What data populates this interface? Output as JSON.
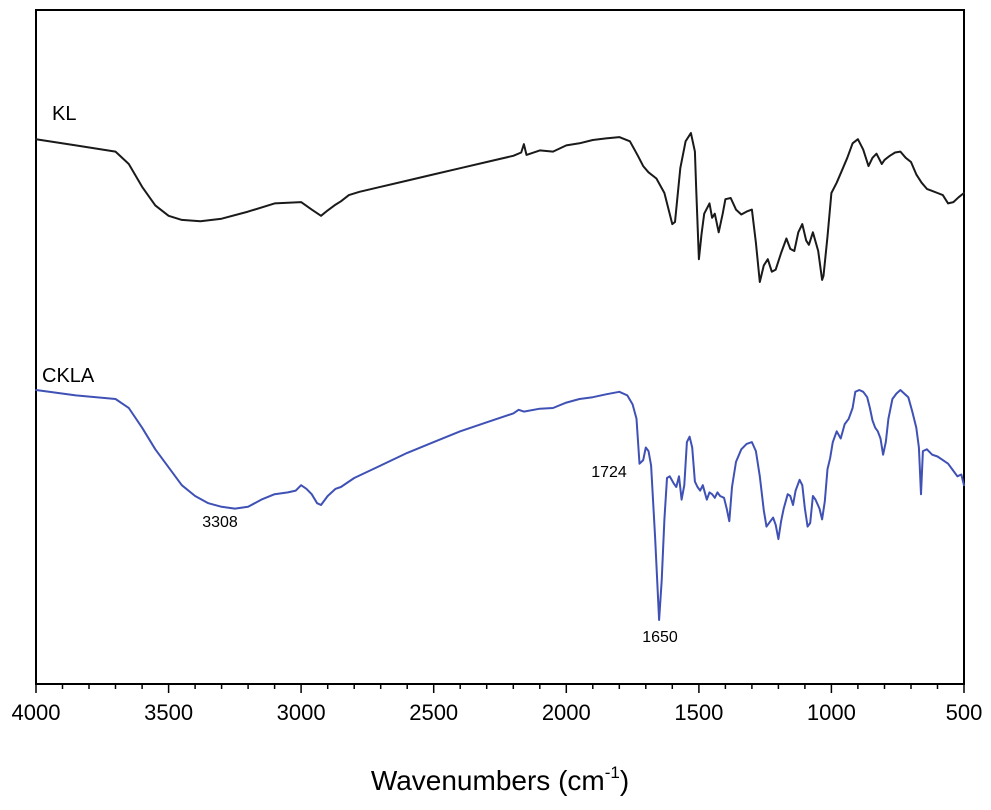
{
  "chart_data": {
    "type": "line",
    "title": "",
    "xlabel": "Wavenumbers (cm",
    "xlabel_sup": "-1",
    "xlabel_close": ")",
    "ylabel": "",
    "xlim": [
      4000,
      500
    ],
    "x_reversed": true,
    "ylim": [
      0,
      100
    ],
    "grid": false,
    "x_ticks": [
      4000,
      3500,
      3000,
      2500,
      2000,
      1500,
      1000,
      500
    ],
    "x_tick_labels": [
      "4000",
      "3500",
      "3000",
      "2500",
      "2000",
      "1500",
      "1000",
      "500"
    ],
    "series": [
      {
        "name": "KL",
        "color": "#1a1a1a",
        "points": [
          [
            4000,
            85.0
          ],
          [
            3850,
            83.5
          ],
          [
            3700,
            82.0
          ],
          [
            3650,
            79.0
          ],
          [
            3600,
            73.5
          ],
          [
            3550,
            69.0
          ],
          [
            3500,
            66.5
          ],
          [
            3450,
            65.5
          ],
          [
            3380,
            65.2
          ],
          [
            3300,
            65.8
          ],
          [
            3200,
            67.5
          ],
          [
            3100,
            69.5
          ],
          [
            3000,
            69.8
          ],
          [
            2960,
            68.0
          ],
          [
            2925,
            66.5
          ],
          [
            2900,
            67.8
          ],
          [
            2870,
            69.2
          ],
          [
            2850,
            70.0
          ],
          [
            2820,
            71.5
          ],
          [
            2780,
            72.3
          ],
          [
            2700,
            73.5
          ],
          [
            2600,
            75.0
          ],
          [
            2500,
            76.5
          ],
          [
            2400,
            78.0
          ],
          [
            2300,
            79.5
          ],
          [
            2200,
            81.0
          ],
          [
            2170,
            81.8
          ],
          [
            2160,
            83.8
          ],
          [
            2150,
            81.2
          ],
          [
            2100,
            82.3
          ],
          [
            2050,
            82.0
          ],
          [
            2000,
            83.5
          ],
          [
            1950,
            84.0
          ],
          [
            1900,
            84.8
          ],
          [
            1850,
            85.2
          ],
          [
            1800,
            85.5
          ],
          [
            1760,
            84.5
          ],
          [
            1730,
            81.0
          ],
          [
            1710,
            78.5
          ],
          [
            1690,
            77.0
          ],
          [
            1660,
            75.5
          ],
          [
            1630,
            72.0
          ],
          [
            1600,
            64.5
          ],
          [
            1590,
            65.0
          ],
          [
            1570,
            78.0
          ],
          [
            1550,
            84.5
          ],
          [
            1530,
            86.5
          ],
          [
            1515,
            82.0
          ],
          [
            1510,
            73.0
          ],
          [
            1500,
            56.0
          ],
          [
            1490,
            62.0
          ],
          [
            1480,
            67.0
          ],
          [
            1460,
            69.5
          ],
          [
            1450,
            66.0
          ],
          [
            1440,
            67.0
          ],
          [
            1425,
            62.5
          ],
          [
            1410,
            67.0
          ],
          [
            1400,
            70.5
          ],
          [
            1380,
            70.8
          ],
          [
            1360,
            68.0
          ],
          [
            1340,
            66.8
          ],
          [
            1320,
            67.5
          ],
          [
            1300,
            68.0
          ],
          [
            1285,
            60.0
          ],
          [
            1270,
            50.5
          ],
          [
            1255,
            54.5
          ],
          [
            1240,
            56.0
          ],
          [
            1225,
            53.0
          ],
          [
            1210,
            53.5
          ],
          [
            1190,
            57.5
          ],
          [
            1170,
            61.0
          ],
          [
            1155,
            58.5
          ],
          [
            1140,
            58.0
          ],
          [
            1125,
            62.5
          ],
          [
            1110,
            64.5
          ],
          [
            1095,
            60.5
          ],
          [
            1085,
            59.5
          ],
          [
            1070,
            62.5
          ],
          [
            1050,
            58.0
          ],
          [
            1035,
            51.0
          ],
          [
            1030,
            52.0
          ],
          [
            1015,
            61.5
          ],
          [
            1000,
            72.0
          ],
          [
            980,
            74.5
          ],
          [
            960,
            77.5
          ],
          [
            940,
            80.5
          ],
          [
            920,
            84.0
          ],
          [
            900,
            85.0
          ],
          [
            880,
            82.5
          ],
          [
            860,
            78.5
          ],
          [
            845,
            80.5
          ],
          [
            830,
            81.5
          ],
          [
            810,
            79.0
          ],
          [
            800,
            80.0
          ],
          [
            780,
            81.0
          ],
          [
            760,
            81.8
          ],
          [
            740,
            82.0
          ],
          [
            720,
            80.5
          ],
          [
            700,
            79.5
          ],
          [
            680,
            76.5
          ],
          [
            660,
            74.5
          ],
          [
            640,
            73.0
          ],
          [
            620,
            72.5
          ],
          [
            600,
            72.0
          ],
          [
            580,
            71.5
          ],
          [
            560,
            69.5
          ],
          [
            540,
            69.8
          ],
          [
            520,
            71.0
          ],
          [
            500,
            72.0
          ]
        ]
      },
      {
        "name": "CKLA",
        "color": "#3f51b5",
        "points": [
          [
            4000,
            41.0
          ],
          [
            3850,
            39.5
          ],
          [
            3700,
            38.5
          ],
          [
            3650,
            36.0
          ],
          [
            3600,
            30.5
          ],
          [
            3550,
            24.5
          ],
          [
            3500,
            19.5
          ],
          [
            3450,
            14.5
          ],
          [
            3400,
            11.5
          ],
          [
            3350,
            9.5
          ],
          [
            3300,
            8.5
          ],
          [
            3250,
            8.0
          ],
          [
            3200,
            8.5
          ],
          [
            3150,
            10.5
          ],
          [
            3100,
            12.0
          ],
          [
            3050,
            12.5
          ],
          [
            3020,
            13.0
          ],
          [
            3000,
            14.5
          ],
          [
            2980,
            13.5
          ],
          [
            2960,
            12.0
          ],
          [
            2940,
            9.5
          ],
          [
            2925,
            9.0
          ],
          [
            2900,
            11.5
          ],
          [
            2870,
            13.5
          ],
          [
            2850,
            14.0
          ],
          [
            2800,
            16.5
          ],
          [
            2700,
            20.0
          ],
          [
            2600,
            23.5
          ],
          [
            2500,
            26.5
          ],
          [
            2400,
            29.5
          ],
          [
            2300,
            32.0
          ],
          [
            2200,
            34.5
          ],
          [
            2180,
            35.5
          ],
          [
            2160,
            35.0
          ],
          [
            2100,
            35.8
          ],
          [
            2050,
            36.0
          ],
          [
            2000,
            37.5
          ],
          [
            1950,
            38.5
          ],
          [
            1900,
            39.0
          ],
          [
            1850,
            39.8
          ],
          [
            1800,
            40.5
          ],
          [
            1770,
            39.5
          ],
          [
            1750,
            37.0
          ],
          [
            1735,
            33.0
          ],
          [
            1724,
            20.5
          ],
          [
            1710,
            21.5
          ],
          [
            1700,
            25.0
          ],
          [
            1690,
            24.0
          ],
          [
            1680,
            20.0
          ],
          [
            1665,
            0.0
          ],
          [
            1650,
            -23.0
          ],
          [
            1640,
            -12.0
          ],
          [
            1630,
            5.0
          ],
          [
            1620,
            16.5
          ],
          [
            1610,
            17.0
          ],
          [
            1595,
            15.0
          ],
          [
            1585,
            14.0
          ],
          [
            1575,
            17.0
          ],
          [
            1565,
            10.5
          ],
          [
            1555,
            14.5
          ],
          [
            1545,
            26.5
          ],
          [
            1535,
            28.0
          ],
          [
            1525,
            25.0
          ],
          [
            1515,
            15.5
          ],
          [
            1505,
            14.0
          ],
          [
            1495,
            13.0
          ],
          [
            1485,
            14.5
          ],
          [
            1470,
            10.5
          ],
          [
            1460,
            12.5
          ],
          [
            1450,
            12.0
          ],
          [
            1440,
            11.0
          ],
          [
            1430,
            12.5
          ],
          [
            1420,
            11.5
          ],
          [
            1405,
            11.0
          ],
          [
            1395,
            8.0
          ],
          [
            1385,
            4.5
          ],
          [
            1375,
            14.0
          ],
          [
            1360,
            21.0
          ],
          [
            1340,
            24.5
          ],
          [
            1320,
            26.0
          ],
          [
            1300,
            26.5
          ],
          [
            1285,
            24.0
          ],
          [
            1270,
            17.0
          ],
          [
            1255,
            7.5
          ],
          [
            1245,
            3.0
          ],
          [
            1230,
            4.5
          ],
          [
            1220,
            5.5
          ],
          [
            1210,
            3.5
          ],
          [
            1200,
            -0.5
          ],
          [
            1190,
            4.5
          ],
          [
            1180,
            8.0
          ],
          [
            1165,
            12.0
          ],
          [
            1155,
            11.5
          ],
          [
            1145,
            9.0
          ],
          [
            1135,
            13.0
          ],
          [
            1120,
            16.0
          ],
          [
            1110,
            14.5
          ],
          [
            1100,
            8.0
          ],
          [
            1090,
            3.0
          ],
          [
            1080,
            4.0
          ],
          [
            1070,
            11.5
          ],
          [
            1060,
            10.5
          ],
          [
            1045,
            8.0
          ],
          [
            1035,
            5.0
          ],
          [
            1025,
            10.0
          ],
          [
            1015,
            19.0
          ],
          [
            1005,
            22.0
          ],
          [
            995,
            26.5
          ],
          [
            980,
            29.5
          ],
          [
            965,
            27.5
          ],
          [
            950,
            31.5
          ],
          [
            935,
            33.0
          ],
          [
            920,
            36.0
          ],
          [
            910,
            40.5
          ],
          [
            895,
            41.0
          ],
          [
            880,
            40.5
          ],
          [
            865,
            39.0
          ],
          [
            855,
            36.0
          ],
          [
            845,
            32.5
          ],
          [
            835,
            30.5
          ],
          [
            825,
            29.5
          ],
          [
            815,
            27.5
          ],
          [
            805,
            23.0
          ],
          [
            795,
            26.5
          ],
          [
            785,
            33.0
          ],
          [
            770,
            38.5
          ],
          [
            755,
            40.0
          ],
          [
            740,
            41.0
          ],
          [
            725,
            40.0
          ],
          [
            710,
            39.0
          ],
          [
            695,
            35.0
          ],
          [
            680,
            30.5
          ],
          [
            670,
            25.0
          ],
          [
            662,
            12.0
          ],
          [
            655,
            24.0
          ],
          [
            640,
            24.5
          ],
          [
            620,
            23.0
          ],
          [
            600,
            22.5
          ],
          [
            580,
            21.5
          ],
          [
            560,
            20.5
          ],
          [
            540,
            18.5
          ],
          [
            525,
            17.0
          ],
          [
            510,
            17.5
          ],
          [
            500,
            14.5
          ]
        ]
      }
    ],
    "annotations": [
      {
        "text": "3308",
        "x": 3308,
        "y": 8.2
      },
      {
        "text": "1724",
        "x": 1724,
        "y": 20.5
      },
      {
        "text": "1650",
        "x": 1650,
        "y": -23.0
      }
    ]
  }
}
